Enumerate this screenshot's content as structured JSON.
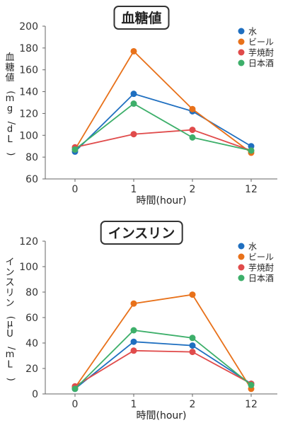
{
  "colors": {
    "水": "#1f6fc0",
    "ビール": "#e8711a",
    "芋焼酎": "#e04b4b",
    "日本酒": "#3daf6a"
  },
  "chart_data": [
    {
      "type": "line",
      "title": "血糖値",
      "xlabel": "時間(hour)",
      "ylabel": "血糖値(mg/dL)",
      "categories": [
        "0",
        "1",
        "2",
        "12"
      ],
      "ylim": [
        60,
        200
      ],
      "yticks": [
        60,
        80,
        100,
        120,
        140,
        160,
        180,
        200
      ],
      "legend_position": "top-right",
      "grid": false,
      "series": [
        {
          "name": "水",
          "values": [
            85,
            138,
            122,
            90
          ]
        },
        {
          "name": "ビール",
          "values": [
            87,
            177,
            124,
            84
          ]
        },
        {
          "name": "芋焼酎",
          "values": [
            89,
            101,
            105,
            86
          ]
        },
        {
          "name": "日本酒",
          "values": [
            87,
            129,
            98,
            86
          ]
        }
      ]
    },
    {
      "type": "line",
      "title": "インスリン",
      "xlabel": "時間(hour)",
      "ylabel": "インスリン(μU/mL)",
      "categories": [
        "0",
        "1",
        "2",
        "12"
      ],
      "ylim": [
        0,
        120
      ],
      "yticks": [
        0,
        20,
        40,
        60,
        80,
        100,
        120
      ],
      "legend_position": "top-right",
      "grid": false,
      "series": [
        {
          "name": "水",
          "values": [
            4,
            41,
            38,
            8
          ]
        },
        {
          "name": "ビール",
          "values": [
            5,
            71,
            78,
            4
          ]
        },
        {
          "name": "芋焼酎",
          "values": [
            6,
            34,
            33,
            8
          ]
        },
        {
          "name": "日本酒",
          "values": [
            4,
            50,
            44,
            7
          ]
        }
      ]
    }
  ]
}
